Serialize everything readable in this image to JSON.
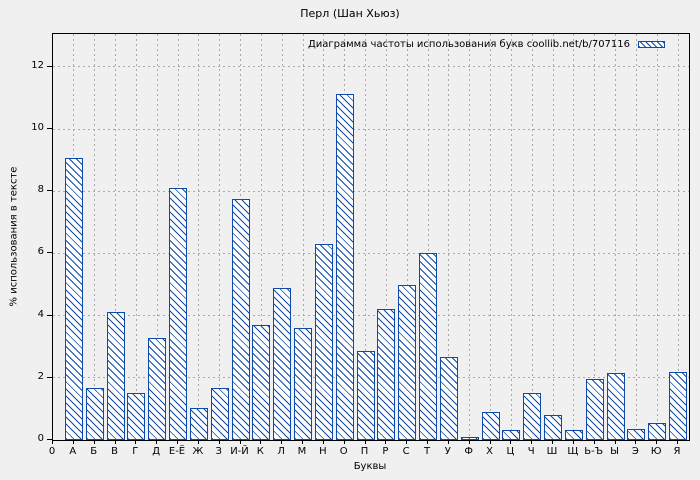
{
  "chart_data": {
    "type": "bar",
    "title": "Перл (Шан Хьюз)",
    "xlabel": "Буквы",
    "ylabel": "% использования в тексте",
    "legend": [
      "Диаграмма частоты использования букв coollib.net/b/707116"
    ],
    "legend_position": "top-right-inside",
    "grid": true,
    "origin_tick_label": "0",
    "yticks": [
      0,
      2,
      4,
      6,
      8,
      10,
      12
    ],
    "ylim": [
      0,
      13.06
    ],
    "categories": [
      "А",
      "Б",
      "В",
      "Г",
      "Д",
      "Е-Ё",
      "Ж",
      "З",
      "И-Й",
      "К",
      "Л",
      "М",
      "Н",
      "О",
      "П",
      "Р",
      "С",
      "Т",
      "У",
      "Ф",
      "Х",
      "Ц",
      "Ч",
      "Ш",
      "Щ",
      "Ь-Ъ",
      "Ы",
      "Э",
      "Ю",
      "Я"
    ],
    "values": [
      9.08,
      1.66,
      4.13,
      1.5,
      3.28,
      8.11,
      1.04,
      1.68,
      7.76,
      3.7,
      4.9,
      3.61,
      6.3,
      11.12,
      2.86,
      4.2,
      4.99,
      6.01,
      2.67,
      0.11,
      0.9,
      0.32,
      1.52,
      0.8,
      0.33,
      1.96,
      2.14,
      0.35,
      0.56,
      2.2
    ],
    "bar_hatch": "\\",
    "series_name": "Диаграмма частоты использования букв coollib.net/b/707116"
  },
  "colors": {
    "background": "#f0f0f0",
    "axis": "#000000",
    "text": "#000000",
    "grid": "#a9a9a9",
    "bar_border": "#0e4aa8",
    "bar_fill": "#ffffff"
  }
}
